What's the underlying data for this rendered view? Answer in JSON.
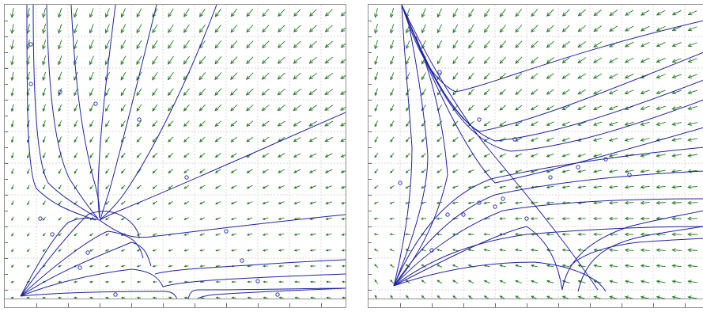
{
  "colors": {
    "background": "#ffffff",
    "frame": "#8f8f8f",
    "grid": "#c8c8c8",
    "arrow": "#1f7a1f",
    "trajectory": "#2222aa"
  },
  "panels": [
    {
      "name": "phase-portrait-left",
      "description_icon": "vector-field-icon"
    },
    {
      "name": "phase-portrait-right",
      "description_icon": "vector-field-icon"
    }
  ]
}
